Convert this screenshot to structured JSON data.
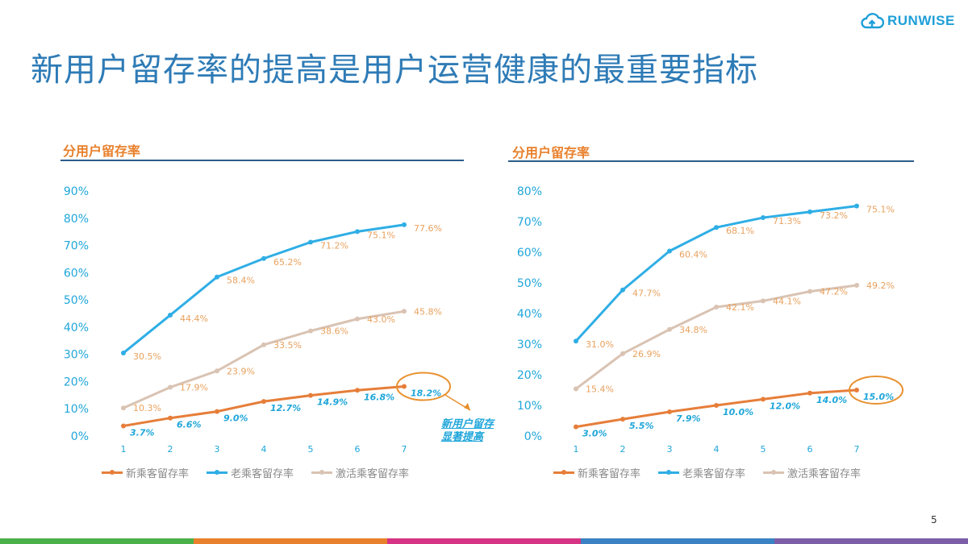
{
  "page_title": "新用户留存率的提高是用户运营健康的最重要指标",
  "logo_text": "RUNWISE",
  "page_number": "5",
  "callout_text": [
    "新用户留存",
    "显著提高"
  ],
  "colors": {
    "new": "#E67E3A",
    "old": "#2FAEE5",
    "reactivated": "#D9C3B3",
    "label_orange": "#E8A15E",
    "label_blue": "#1FA6DA",
    "highlight": "#E8912F"
  },
  "bottom_bar_colors": [
    "#4BB04A",
    "#E8802C",
    "#D63384",
    "#3B82C4",
    "#7B5EA7"
  ],
  "chart_data": [
    {
      "type": "line",
      "title": "分用户留存率",
      "categories": [
        "1",
        "2",
        "3",
        "4",
        "5",
        "6",
        "7"
      ],
      "ylim": [
        0,
        90
      ],
      "yticks": [
        "0%",
        "10%",
        "20%",
        "30%",
        "40%",
        "50%",
        "60%",
        "70%",
        "80%",
        "90%"
      ],
      "series": [
        {
          "name": "新乘客留存率",
          "key": "new",
          "values": [
            3.7,
            6.6,
            9.0,
            12.7,
            14.9,
            16.8,
            18.2
          ],
          "labels": [
            "3.7%",
            "6.6%",
            "9.0%",
            "12.7%",
            "14.9%",
            "16.8%",
            "18.2%"
          ]
        },
        {
          "name": "老乘客留存率",
          "key": "old",
          "values": [
            30.5,
            44.4,
            58.4,
            65.2,
            71.2,
            75.1,
            77.6
          ],
          "labels": [
            "30.5%",
            "44.4%",
            "58.4%",
            "65.2%",
            "71.2%",
            "75.1%",
            "77.6%"
          ]
        },
        {
          "name": "激活乘客留存率",
          "key": "reactivated",
          "values": [
            10.3,
            17.9,
            23.9,
            33.5,
            38.6,
            43.0,
            45.8
          ],
          "labels": [
            "10.3%",
            "17.9%",
            "23.9%",
            "33.5%",
            "38.6%",
            "43.0%",
            "45.8%"
          ]
        }
      ],
      "highlight": "18.2%"
    },
    {
      "type": "line",
      "title": "分用户留存率",
      "categories": [
        "1",
        "2",
        "3",
        "4",
        "5",
        "6",
        "7"
      ],
      "ylim": [
        0,
        80
      ],
      "yticks": [
        "0%",
        "10%",
        "20%",
        "30%",
        "40%",
        "50%",
        "60%",
        "70%",
        "80%"
      ],
      "series": [
        {
          "name": "新乘客留存率",
          "key": "new",
          "values": [
            3.0,
            5.5,
            7.9,
            10.0,
            12.0,
            14.0,
            15.0
          ],
          "labels": [
            "3.0%",
            "5.5%",
            "7.9%",
            "10.0%",
            "12.0%",
            "14.0%",
            "15.0%"
          ]
        },
        {
          "name": "老乘客留存率",
          "key": "old",
          "values": [
            31.0,
            47.7,
            60.4,
            68.1,
            71.3,
            73.2,
            75.1
          ],
          "labels": [
            "31.0%",
            "47.7%",
            "60.4%",
            "68.1%",
            "71.3%",
            "73.2%",
            "75.1%"
          ]
        },
        {
          "name": "激活乘客留存率",
          "key": "reactivated",
          "values": [
            15.4,
            26.9,
            34.8,
            42.1,
            44.1,
            47.2,
            49.2
          ],
          "labels": [
            "15.4%",
            "26.9%",
            "34.8%",
            "42.1%",
            "44.1%",
            "47.2%",
            "49.2%"
          ]
        }
      ],
      "highlight": "15.0%"
    }
  ]
}
